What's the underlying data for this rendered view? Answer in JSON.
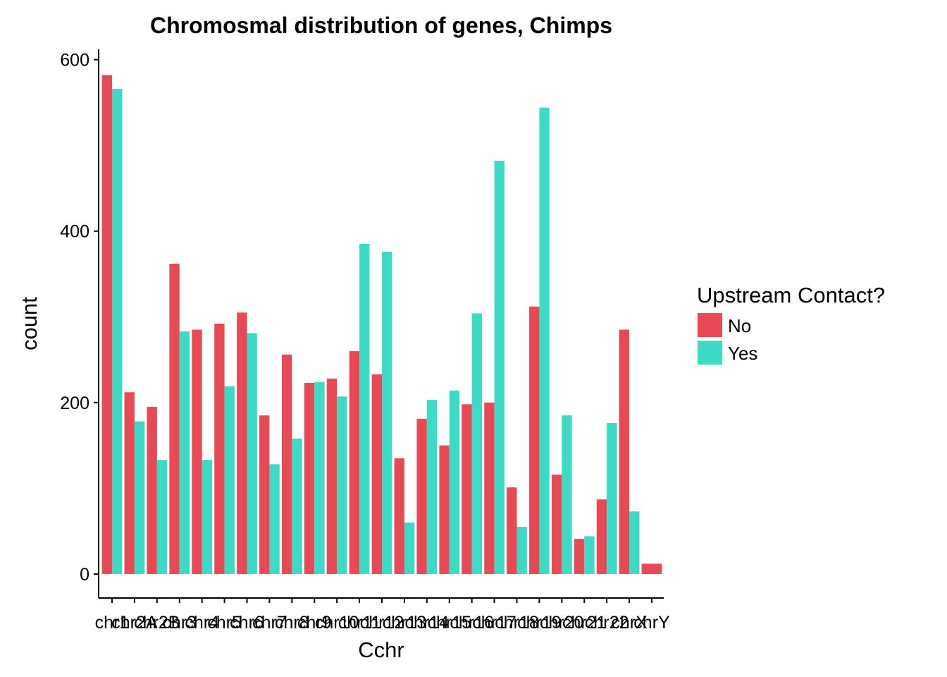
{
  "chart_data": {
    "type": "bar",
    "title": "Chromosmal distribution of genes, Chimps",
    "xlabel": "Cchr",
    "ylabel": "count",
    "ylim": [
      -28,
      612
    ],
    "yticks": [
      0,
      200,
      400,
      600
    ],
    "grid": false,
    "legend": {
      "title": "Upstream Contact?",
      "position": "right"
    },
    "categories": [
      "chr1",
      "chr2A",
      "chr2B",
      "chr3",
      "chr4",
      "chr5",
      "chr6",
      "chr7",
      "chr8",
      "chr9",
      "chr10",
      "chr11",
      "chr12",
      "chr13",
      "chr14",
      "chr15",
      "chr16",
      "chr17",
      "chr18",
      "chr19",
      "chr20",
      "chr21",
      "chr22",
      "chrX",
      "chrY"
    ],
    "series": [
      {
        "name": "No",
        "color": "#E84A55",
        "values": [
          582,
          212,
          195,
          362,
          285,
          292,
          305,
          185,
          256,
          223,
          228,
          260,
          233,
          135,
          181,
          150,
          198,
          200,
          101,
          312,
          116,
          41,
          87,
          285,
          12
        ]
      },
      {
        "name": "Yes",
        "color": "#3DDBC6",
        "values": [
          566,
          178,
          133,
          283,
          133,
          219,
          281,
          128,
          158,
          224,
          207,
          385,
          376,
          60,
          203,
          214,
          304,
          482,
          55,
          544,
          185,
          44,
          176,
          73,
          null
        ]
      }
    ]
  }
}
